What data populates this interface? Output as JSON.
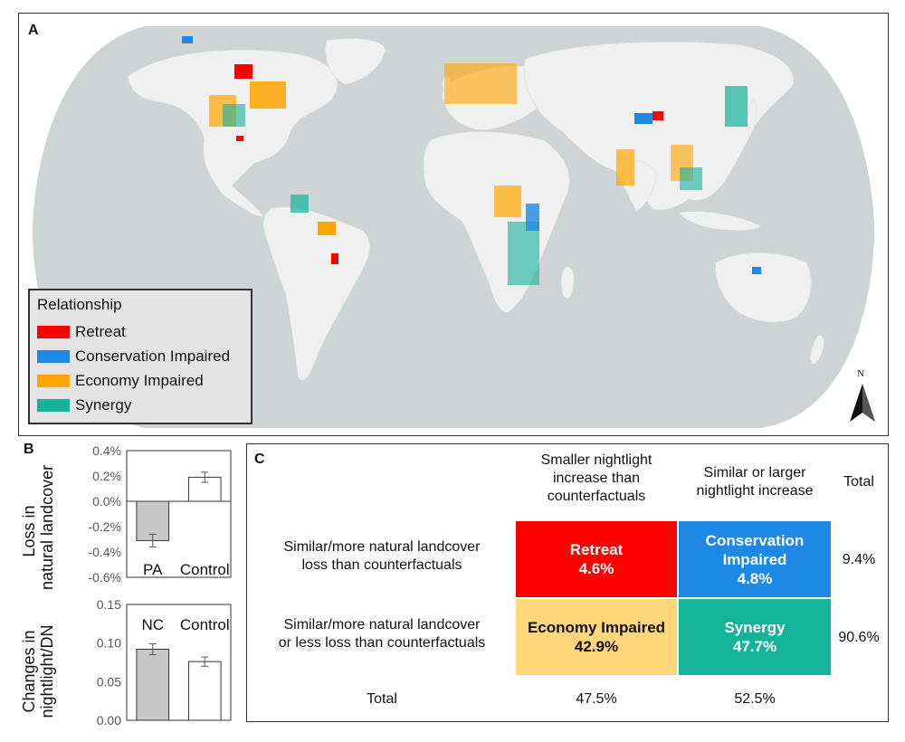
{
  "panel_a": {
    "label": "A",
    "legend": {
      "title": "Relationship",
      "items": [
        {
          "label": "Retreat",
          "color": "#ff0000"
        },
        {
          "label": "Conservation Impaired",
          "color": "#1e88e5"
        },
        {
          "label": "Economy Impaired",
          "color": "#ffa500"
        },
        {
          "label": "Synergy",
          "color": "#14b39a"
        }
      ]
    },
    "north_label": "N"
  },
  "panel_b": {
    "label": "B",
    "ylabel_top": [
      "Loss in",
      "natural landcover"
    ],
    "ylabel_bottom": [
      "Changes in",
      "nightlight/DN"
    ]
  },
  "panel_c": {
    "label": "C",
    "col_headers": [
      "Smaller nightlight increase than counterfactuals",
      "Similar or larger nightlight increase",
      "Total"
    ],
    "col_headers_lines": [
      [
        "Smaller nightlight",
        "increase than",
        "counterfactuals"
      ],
      [
        "Similar or larger",
        "nightlight increase"
      ],
      [
        "Total"
      ]
    ],
    "row_headers_lines": [
      [
        "Similar/more natural landcover",
        "loss than counterfactuals"
      ],
      [
        "Similar/more natural landcover",
        "or less loss than counterfactuals"
      ],
      [
        "Total"
      ]
    ],
    "cells": [
      {
        "name": "Retreat",
        "value": "4.6%",
        "color": "#ff0000",
        "text_color": "#ffffff"
      },
      {
        "name": "Conservation Impaired",
        "name_lines": [
          "Conservation",
          "Impaired"
        ],
        "value": "4.8%",
        "color": "#1e88e5",
        "text_color": "#ffffff"
      },
      {
        "name": "Economy Impaired",
        "value": "42.9%",
        "color": "#ffd67a",
        "text_color": "#111111"
      },
      {
        "name": "Synergy",
        "value": "47.7%",
        "color": "#14b39a",
        "text_color": "#ffffff"
      }
    ],
    "row_totals": [
      "9.4%",
      "90.6%"
    ],
    "col_totals": [
      "47.5%",
      "52.5%"
    ]
  },
  "chart_data": [
    {
      "type": "bar",
      "categories": [
        "PA",
        "Control"
      ],
      "values": [
        -0.31,
        0.19
      ],
      "errors": [
        0.05,
        0.04
      ],
      "colors": [
        "#c8c8c8",
        "#ffffff"
      ],
      "ylim": [
        -0.6,
        0.4
      ],
      "yticks": [
        "0.4%",
        "0.2%",
        "0.0%",
        "-0.2%",
        "-0.4%",
        "-0.6%"
      ],
      "ytick_values": [
        0.4,
        0.2,
        0.0,
        -0.2,
        -0.4,
        -0.6
      ],
      "ylabel": "Loss in natural landcover"
    },
    {
      "type": "bar",
      "categories": [
        "NC",
        "Control"
      ],
      "values": [
        0.092,
        0.076
      ],
      "errors": [
        0.007,
        0.006
      ],
      "colors": [
        "#c8c8c8",
        "#ffffff"
      ],
      "ylim": [
        0.0,
        0.15
      ],
      "yticks": [
        "0.15",
        "0.10",
        "0.05",
        "0.00"
      ],
      "ytick_values": [
        0.15,
        0.1,
        0.05,
        0.0
      ],
      "ylabel": "Changes in nightlight/DN"
    }
  ]
}
